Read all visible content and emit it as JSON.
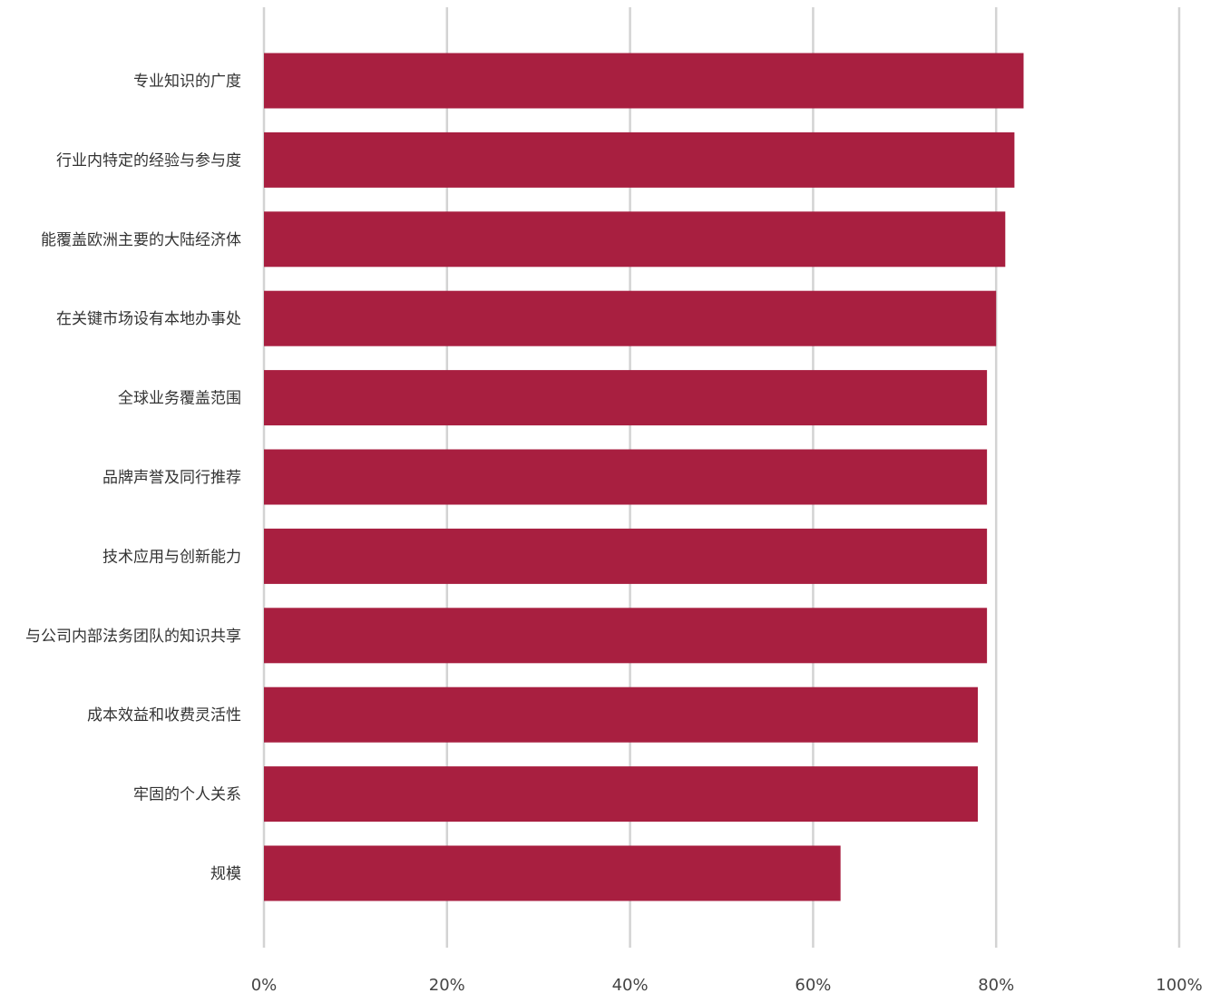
{
  "chart_data": {
    "type": "bar",
    "orientation": "horizontal",
    "title": "",
    "xlabel": "",
    "ylabel": "",
    "categories": [
      "专业知识的广度",
      "行业内特定的经验与参与度",
      "能覆盖欧洲主要的大陆经济体",
      "在关键市场设有本地办事处",
      "全球业务覆盖范围",
      "品牌声誉及同行推荐",
      "技术应用与创新能力",
      "与公司内部法务团队的知识共享",
      "成本效益和收费灵活性",
      "牢固的个人关系",
      "规模"
    ],
    "values": [
      83,
      82,
      81,
      80,
      79,
      79,
      79,
      79,
      78,
      78,
      63
    ],
    "xlim": [
      0,
      100
    ],
    "ticks": [
      0,
      20,
      40,
      60,
      80,
      100
    ],
    "tick_labels": [
      "0%",
      "20%",
      "40%",
      "60%",
      "80%",
      "100%"
    ],
    "grid": true,
    "legend": "none",
    "bar_color": "#a81f40",
    "grid_color": "#d3d3d3"
  }
}
